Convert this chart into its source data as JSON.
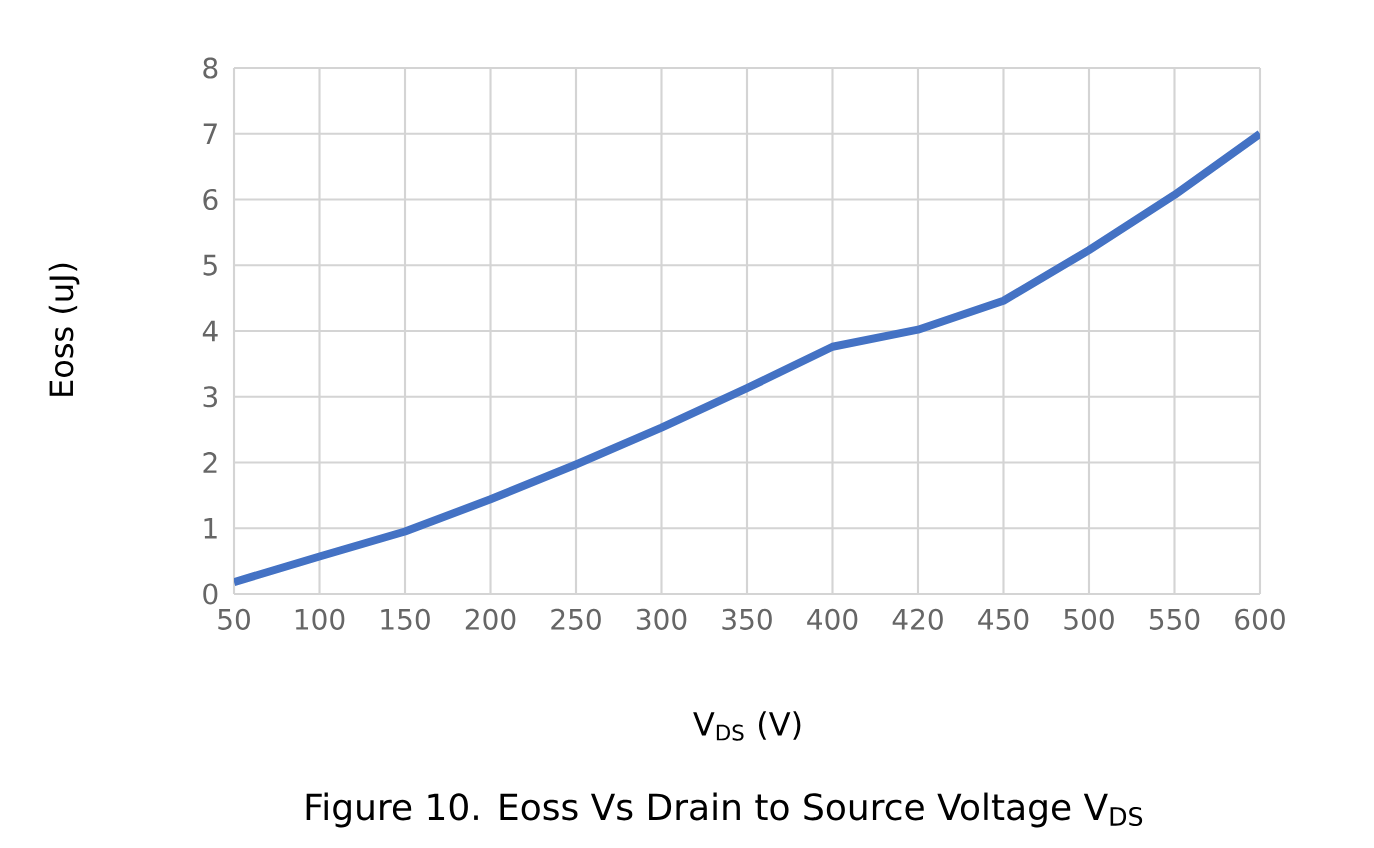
{
  "chart_data": {
    "type": "line",
    "xlabel": "V$_{DS}$ (V)",
    "ylabel": "Eoss (uJ)",
    "categories": [
      "50",
      "100",
      "150",
      "200",
      "250",
      "300",
      "350",
      "400",
      "420",
      "450",
      "500",
      "550",
      "600"
    ],
    "series": [
      {
        "color": "#4472c4",
        "values": [
          0.18,
          0.57,
          0.95,
          1.44,
          1.97,
          2.53,
          3.13,
          3.76,
          4.02,
          4.46,
          5.23,
          6.07,
          7.0
        ]
      }
    ],
    "ylim": [
      0,
      8
    ],
    "yticks": [
      0,
      1,
      2,
      3,
      4,
      5,
      6,
      7,
      8
    ],
    "grid": true,
    "marker": "none",
    "line_style": "solid",
    "annotations": [
      "Figure 10. Eoss Vs Drain to Source Voltage V$_{DS}$"
    ]
  }
}
